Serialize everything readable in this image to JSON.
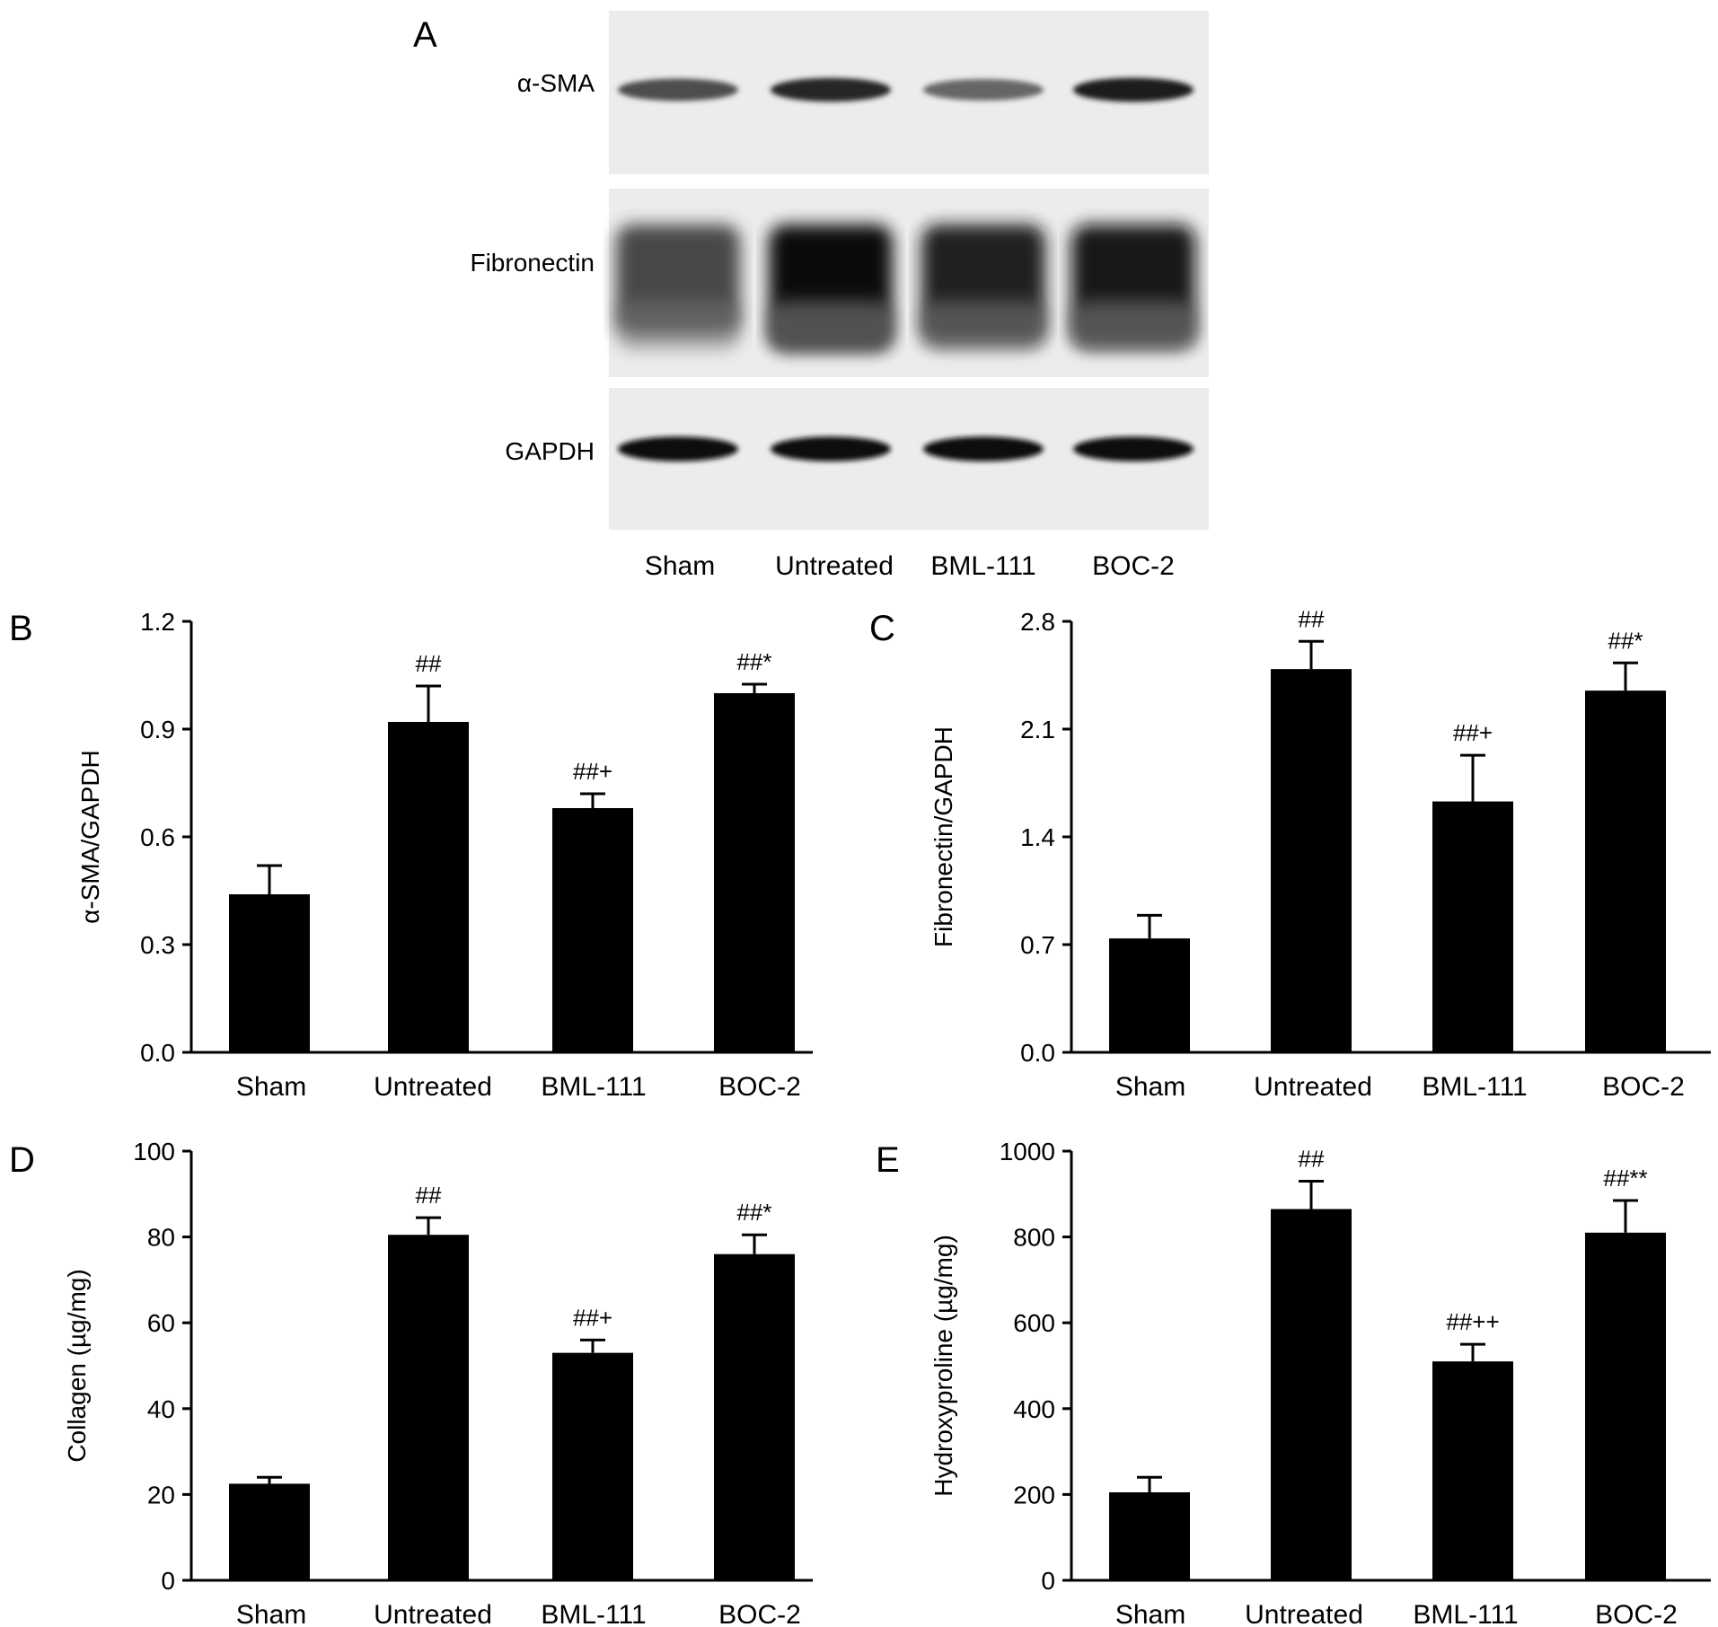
{
  "western_blot": {
    "panel_letter": "A",
    "rows": [
      {
        "label": "α-SMA",
        "intensities": [
          0.7,
          0.85,
          0.6,
          0.88
        ]
      },
      {
        "label": "Fibronectin",
        "intensities": [
          0.75,
          1.0,
          0.9,
          0.95
        ]
      },
      {
        "label": "GAPDH",
        "intensities": [
          0.95,
          0.95,
          0.95,
          0.95
        ]
      }
    ],
    "lane_labels": [
      "Sham",
      "Untreated",
      "BML-111",
      "BOC-2"
    ]
  },
  "chart_data": [
    {
      "panel": "B",
      "type": "bar",
      "categories": [
        "Sham",
        "Untreated",
        "BML-111",
        "BOC-2"
      ],
      "values": [
        0.44,
        0.92,
        0.68,
        1.0
      ],
      "errors": [
        0.08,
        0.1,
        0.04,
        0.025
      ],
      "significance": [
        "",
        "##",
        "##+",
        "##*"
      ],
      "ylabel": "α-SMA/GAPDH",
      "ylim": [
        0,
        1.2
      ],
      "yticks": [
        "0.0",
        "0.3",
        "0.6",
        "0.9",
        "1.2"
      ],
      "yticks_values": [
        0,
        0.3,
        0.6,
        0.9,
        1.2
      ]
    },
    {
      "panel": "C",
      "type": "bar",
      "categories": [
        "Sham",
        "Untreated",
        "BML-111",
        "BOC-2"
      ],
      "values": [
        0.74,
        2.49,
        1.63,
        2.35
      ],
      "errors": [
        0.15,
        0.18,
        0.3,
        0.18
      ],
      "significance": [
        "",
        "##",
        "##+",
        "##*"
      ],
      "ylabel": "Fibronectin/GAPDH",
      "ylim": [
        0,
        2.8
      ],
      "yticks": [
        "0.0",
        "0.7",
        "1.4",
        "2.1",
        "2.8"
      ],
      "yticks_values": [
        0,
        0.7,
        1.4,
        2.1,
        2.8
      ]
    },
    {
      "panel": "D",
      "type": "bar",
      "categories": [
        "Sham",
        "Untreated",
        "BML-111",
        "BOC-2"
      ],
      "values": [
        22.5,
        80.5,
        53,
        76
      ],
      "errors": [
        1.5,
        4,
        3,
        4.5
      ],
      "significance": [
        "",
        "##",
        "##+",
        "##*"
      ],
      "ylabel": "Collagen (µg/mg)",
      "ylim": [
        0,
        100
      ],
      "yticks": [
        "0",
        "20",
        "40",
        "60",
        "80",
        "100"
      ],
      "yticks_values": [
        0,
        20,
        40,
        60,
        80,
        100
      ]
    },
    {
      "panel": "E",
      "type": "bar",
      "categories": [
        "Sham",
        "Untreated",
        "BML-111",
        "BOC-2"
      ],
      "values": [
        205,
        865,
        510,
        810
      ],
      "errors": [
        35,
        65,
        40,
        75
      ],
      "significance": [
        "",
        "##",
        "##++",
        "##**"
      ],
      "ylabel": "Hydroxyproline (µg/mg)",
      "ylim": [
        0,
        1000
      ],
      "yticks": [
        "0",
        "200",
        "400",
        "600",
        "800",
        "1000"
      ],
      "yticks_values": [
        0,
        200,
        400,
        600,
        800,
        1000
      ]
    }
  ]
}
